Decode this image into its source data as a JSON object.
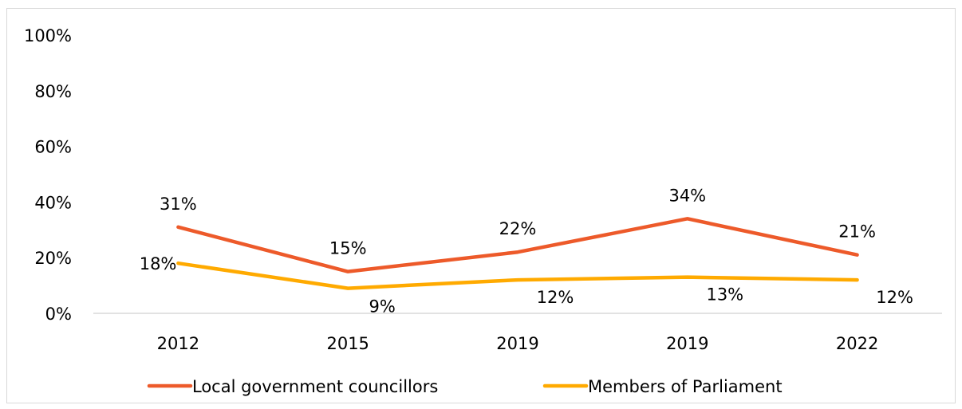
{
  "chart_data": {
    "type": "line",
    "categories": [
      "2012",
      "2015",
      "2019",
      "2019",
      "2022"
    ],
    "ylim": [
      0,
      100
    ],
    "yticks": [
      0,
      20,
      40,
      60,
      80,
      100
    ],
    "ytick_labels": [
      "0%",
      "20%",
      "40%",
      "60%",
      "80%",
      "100%"
    ],
    "grid": false,
    "legend_position": "bottom",
    "series": [
      {
        "name": "Local government councillors",
        "color": "#ED5A2A",
        "values": [
          31,
          15,
          22,
          34,
          21
        ],
        "labels": [
          "31%",
          "15%",
          "22%",
          "34%",
          "21%"
        ]
      },
      {
        "name": "Members of Parliament",
        "color": "#FFAA00",
        "values": [
          18,
          9,
          12,
          13,
          12
        ],
        "labels": [
          "18%",
          "9%",
          "12%",
          "13%",
          "12%"
        ]
      }
    ]
  }
}
